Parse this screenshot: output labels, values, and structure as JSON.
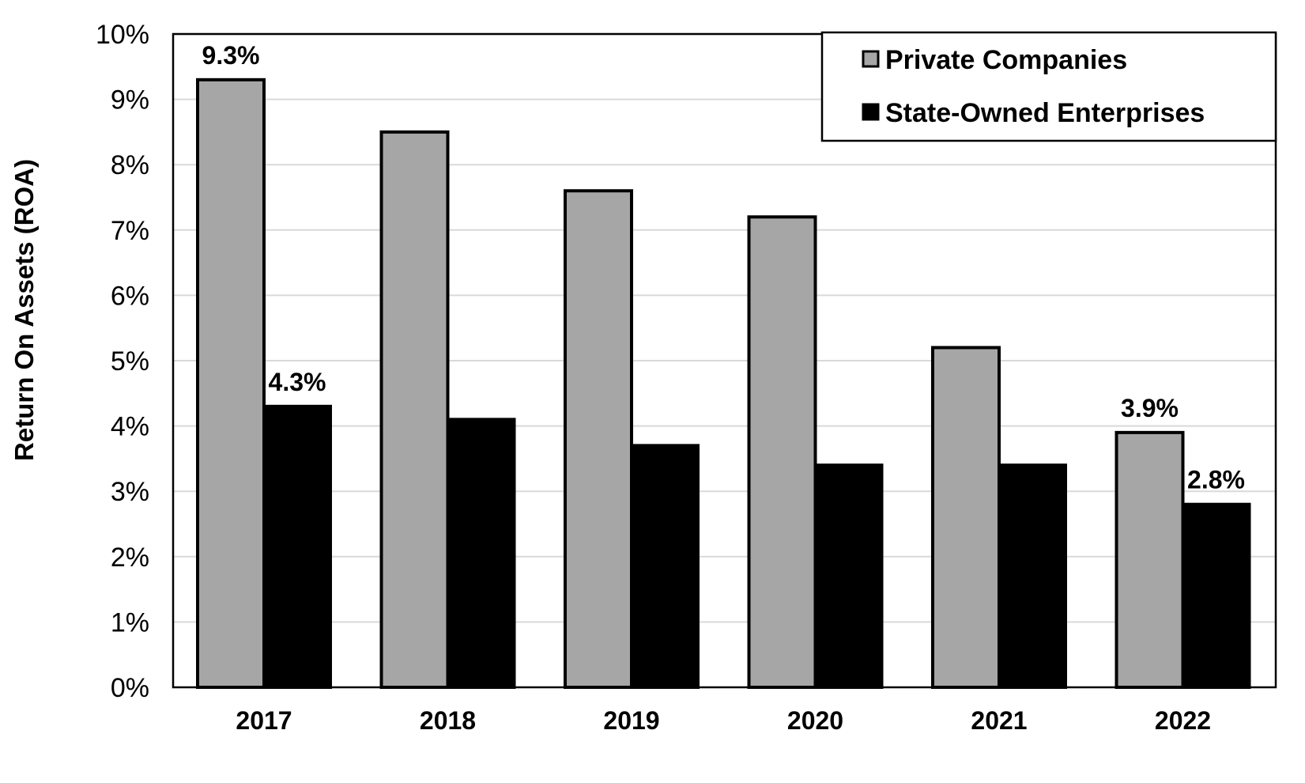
{
  "chart_data": {
    "type": "bar",
    "title": "",
    "xlabel": "",
    "ylabel": "Return On Assets (ROA)",
    "categories": [
      "2017",
      "2018",
      "2019",
      "2020",
      "2021",
      "2022"
    ],
    "ylim": [
      0,
      10
    ],
    "yticks": [
      {
        "value": 0,
        "label": "0%"
      },
      {
        "value": 1,
        "label": "1%"
      },
      {
        "value": 2,
        "label": "2%"
      },
      {
        "value": 3,
        "label": "3%"
      },
      {
        "value": 4,
        "label": "4%"
      },
      {
        "value": 5,
        "label": "5%"
      },
      {
        "value": 6,
        "label": "6%"
      },
      {
        "value": 7,
        "label": "7%"
      },
      {
        "value": 8,
        "label": "8%"
      },
      {
        "value": 9,
        "label": "9%"
      },
      {
        "value": 10,
        "label": "10%"
      }
    ],
    "grid": true,
    "legend_position": "top-right",
    "series": [
      {
        "name": "Private Companies",
        "color": "#a6a6a6",
        "values": [
          9.3,
          8.5,
          7.6,
          7.2,
          5.2,
          3.9
        ],
        "data_labels": [
          "9.3%",
          null,
          null,
          null,
          null,
          "3.9%"
        ]
      },
      {
        "name": "State-Owned Enterprises",
        "color": "#000000",
        "values": [
          4.3,
          4.1,
          3.7,
          3.4,
          3.4,
          2.8
        ],
        "data_labels": [
          "4.3%",
          null,
          null,
          null,
          null,
          "2.8%"
        ]
      }
    ]
  }
}
